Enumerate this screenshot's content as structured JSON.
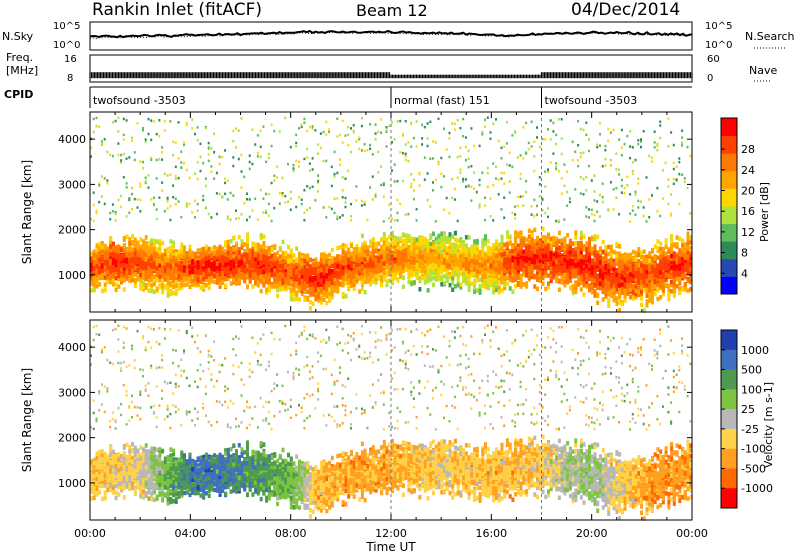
{
  "header": {
    "station": "Rankin Inlet (fitACF)",
    "beam": "Beam 12",
    "date": "04/Dec/2014"
  },
  "chart_data": [
    {
      "type": "line",
      "name": "noise-panel",
      "left_label": "N.Sky",
      "right_label": "N.Search",
      "left_ticks": [
        "10^5",
        "10^0"
      ],
      "right_ticks": [
        "10^5",
        "10^0"
      ],
      "x": [
        0,
        2,
        3,
        4,
        6,
        8,
        10,
        12,
        14,
        16,
        18,
        20,
        22,
        24
      ],
      "values": [
        2.3,
        2.5,
        2.6,
        2.9,
        3.1,
        3.4,
        3.3,
        3.2,
        3.0,
        2.6,
        3.1,
        3.2,
        3.0,
        2.7
      ]
    },
    {
      "type": "line",
      "name": "frequency-panel",
      "left_label": "Freq.",
      "left_unit": "[MHz]",
      "right_label": "Nave",
      "left_ticks": [
        "16",
        "8"
      ],
      "right_ticks": [
        "60",
        "0"
      ],
      "freq_mhz": 10.6
    },
    {
      "type": "table",
      "name": "cpid-strip",
      "label": "CPID",
      "segments": [
        {
          "start_hour": 0,
          "text": "twofsound -3503"
        },
        {
          "start_hour": 12,
          "text": "normal (fast) 151"
        },
        {
          "start_hour": 18,
          "text": "twofsound -3503"
        }
      ]
    },
    {
      "type": "heatmap",
      "name": "power-panel",
      "ylabel": "Slant Range [km]",
      "xlim": [
        0,
        24
      ],
      "ylim": [
        180,
        4600
      ],
      "yticks": [
        "1000",
        "2000",
        "3000",
        "4000"
      ],
      "colorbar_label": "Power [dB]",
      "colorbar_ticks": [
        "28",
        "24",
        "20",
        "16",
        "12",
        "8",
        "4"
      ],
      "colorbar_colors": [
        "#0000ff",
        "#2848b4",
        "#2e8b57",
        "#5dbd5d",
        "#aee23c",
        "#ffd700",
        "#ffa500",
        "#ff7a00",
        "#ff4000",
        "#ff0000"
      ],
      "power_scale": [
        0,
        30
      ],
      "scatter_band": {
        "centre_km": [
          1200,
          1350,
          1300,
          1200,
          1200,
          1250,
          1300,
          1250,
          1050,
          950,
          1200,
          1300,
          1400,
          1400,
          1400,
          1300,
          1250,
          1400,
          1400,
          1350,
          1200,
          1000,
          1000,
          1200,
          1300
        ],
        "halfwidth_km": [
          500,
          550,
          600,
          600,
          500,
          500,
          550,
          600,
          550,
          600,
          550,
          600,
          550,
          600,
          600,
          550,
          600,
          650,
          600,
          650,
          700,
          700,
          650,
          650,
          600
        ],
        "peak_power_db": [
          26,
          28,
          26,
          24,
          27,
          28,
          27,
          27,
          25,
          28,
          26,
          25,
          24,
          22,
          20,
          22,
          22,
          28,
          28,
          28,
          28,
          27,
          26,
          27,
          28
        ]
      }
    },
    {
      "type": "heatmap",
      "name": "velocity-panel",
      "ylabel": "Slant Range [km]",
      "xlim": [
        0,
        24
      ],
      "ylim": [
        180,
        4600
      ],
      "yticks": [
        "1000",
        "2000",
        "3000",
        "4000"
      ],
      "xticks": [
        "00:00",
        "04:00",
        "08:00",
        "12:00",
        "16:00",
        "20:00",
        "00:00"
      ],
      "xlabel": "Time UT",
      "colorbar_label": "Velocity [m s-1]",
      "colorbar_ticks": [
        "1000",
        "500",
        "100",
        "25",
        "-25",
        "-100",
        "-500",
        "-1000"
      ],
      "colorbar_colors": [
        "#2040b0",
        "#3f6fc0",
        "#4e9a4e",
        "#7dc442",
        "#b8b8b8",
        "#ffd24a",
        "#ffa020",
        "#ff6a00",
        "#ff0000"
      ],
      "velocity_scale": [
        -1000,
        1000
      ],
      "mean_velocity": [
        -300,
        -200,
        -100,
        300,
        600,
        600,
        500,
        400,
        300,
        -300,
        -400,
        -400,
        -400,
        -300,
        -200,
        -300,
        -300,
        -350,
        -200,
        50,
        100,
        -150,
        -400,
        -500,
        -400
      ]
    }
  ],
  "x_axis": {
    "ticks": [
      "00:00",
      "04:00",
      "08:00",
      "12:00",
      "16:00",
      "20:00",
      "00:00"
    ],
    "label": "Time UT"
  }
}
